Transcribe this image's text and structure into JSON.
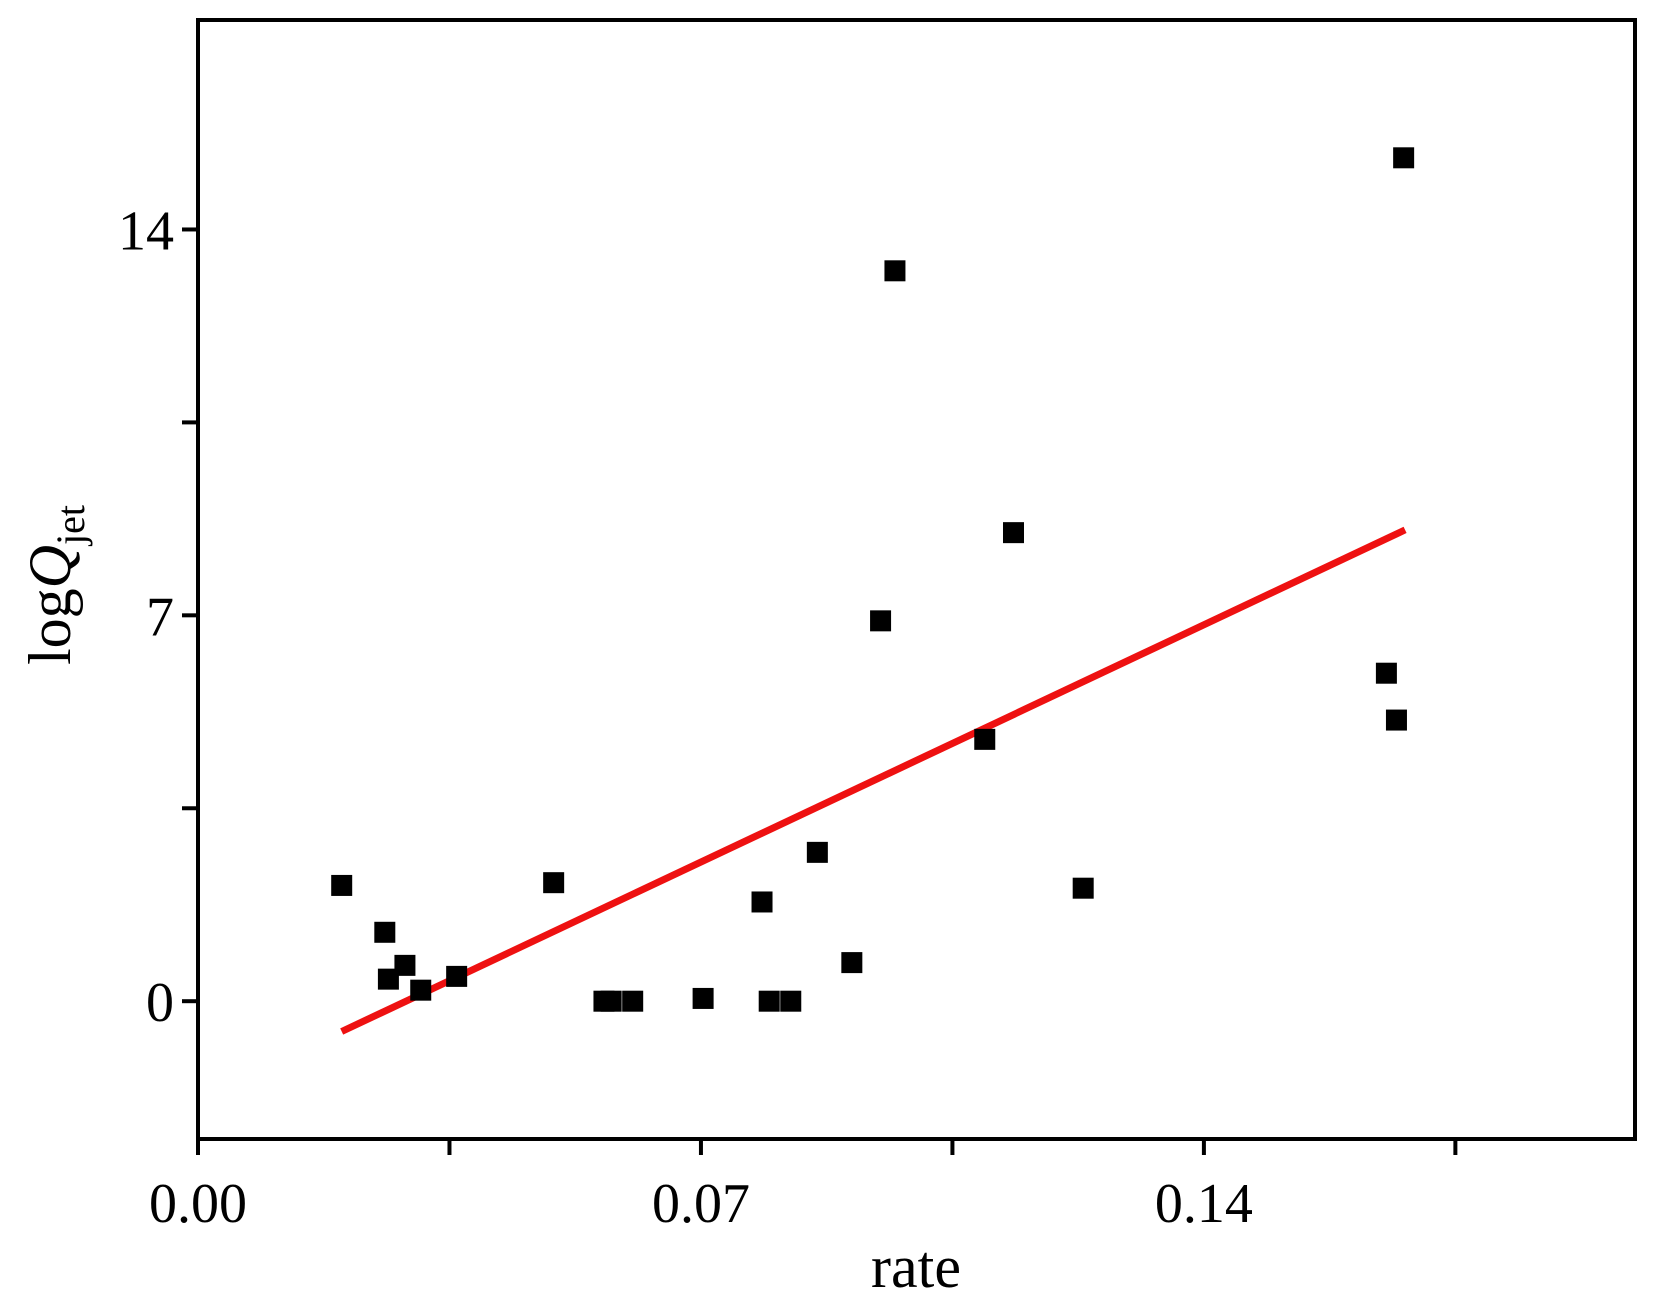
{
  "chart_data": {
    "type": "scatter",
    "xlabel": "rate",
    "ylabel": {
      "prefix": "log",
      "main": "Q",
      "sub": "jet"
    },
    "xlim": [
      0.0,
      0.2
    ],
    "ylim": [
      -2.5,
      17.8
    ],
    "x_ticks": [
      0.0,
      0.035,
      0.07,
      0.105,
      0.14,
      0.175
    ],
    "x_tick_labels": [
      {
        "value": 0.0,
        "label": "0.00"
      },
      {
        "value": 0.07,
        "label": "0.07"
      },
      {
        "value": 0.14,
        "label": "0.14"
      }
    ],
    "y_ticks": [
      0,
      3.5,
      7,
      10.5,
      14
    ],
    "y_tick_labels": [
      {
        "value": 0,
        "label": "0"
      },
      {
        "value": 7,
        "label": "7"
      },
      {
        "value": 14,
        "label": "14"
      }
    ],
    "grid": false,
    "colors": {
      "points": "#000000",
      "fit_line": "#ee1111",
      "axes": "#000000"
    },
    "points": [
      {
        "x": 0.02,
        "y": 2.1
      },
      {
        "x": 0.026,
        "y": 1.25
      },
      {
        "x": 0.0265,
        "y": 0.4
      },
      {
        "x": 0.0288,
        "y": 0.65
      },
      {
        "x": 0.031,
        "y": 0.2
      },
      {
        "x": 0.036,
        "y": 0.45
      },
      {
        "x": 0.0495,
        "y": 2.15
      },
      {
        "x": 0.0565,
        "y": 0.0
      },
      {
        "x": 0.0575,
        "y": 0.0
      },
      {
        "x": 0.0605,
        "y": 0.0
      },
      {
        "x": 0.0703,
        "y": 0.05
      },
      {
        "x": 0.0785,
        "y": 1.8
      },
      {
        "x": 0.0795,
        "y": 0.0
      },
      {
        "x": 0.0825,
        "y": 0.0
      },
      {
        "x": 0.0862,
        "y": 2.7
      },
      {
        "x": 0.091,
        "y": 0.7
      },
      {
        "x": 0.095,
        "y": 6.9
      },
      {
        "x": 0.097,
        "y": 13.25
      },
      {
        "x": 0.1095,
        "y": 4.75
      },
      {
        "x": 0.1135,
        "y": 8.5
      },
      {
        "x": 0.1232,
        "y": 2.05
      },
      {
        "x": 0.1654,
        "y": 5.95
      },
      {
        "x": 0.1668,
        "y": 5.1
      },
      {
        "x": 0.1678,
        "y": 15.3
      }
    ],
    "fit_line": {
      "x": [
        0.02,
        0.168
      ],
      "y": [
        -0.55,
        8.55
      ]
    }
  }
}
